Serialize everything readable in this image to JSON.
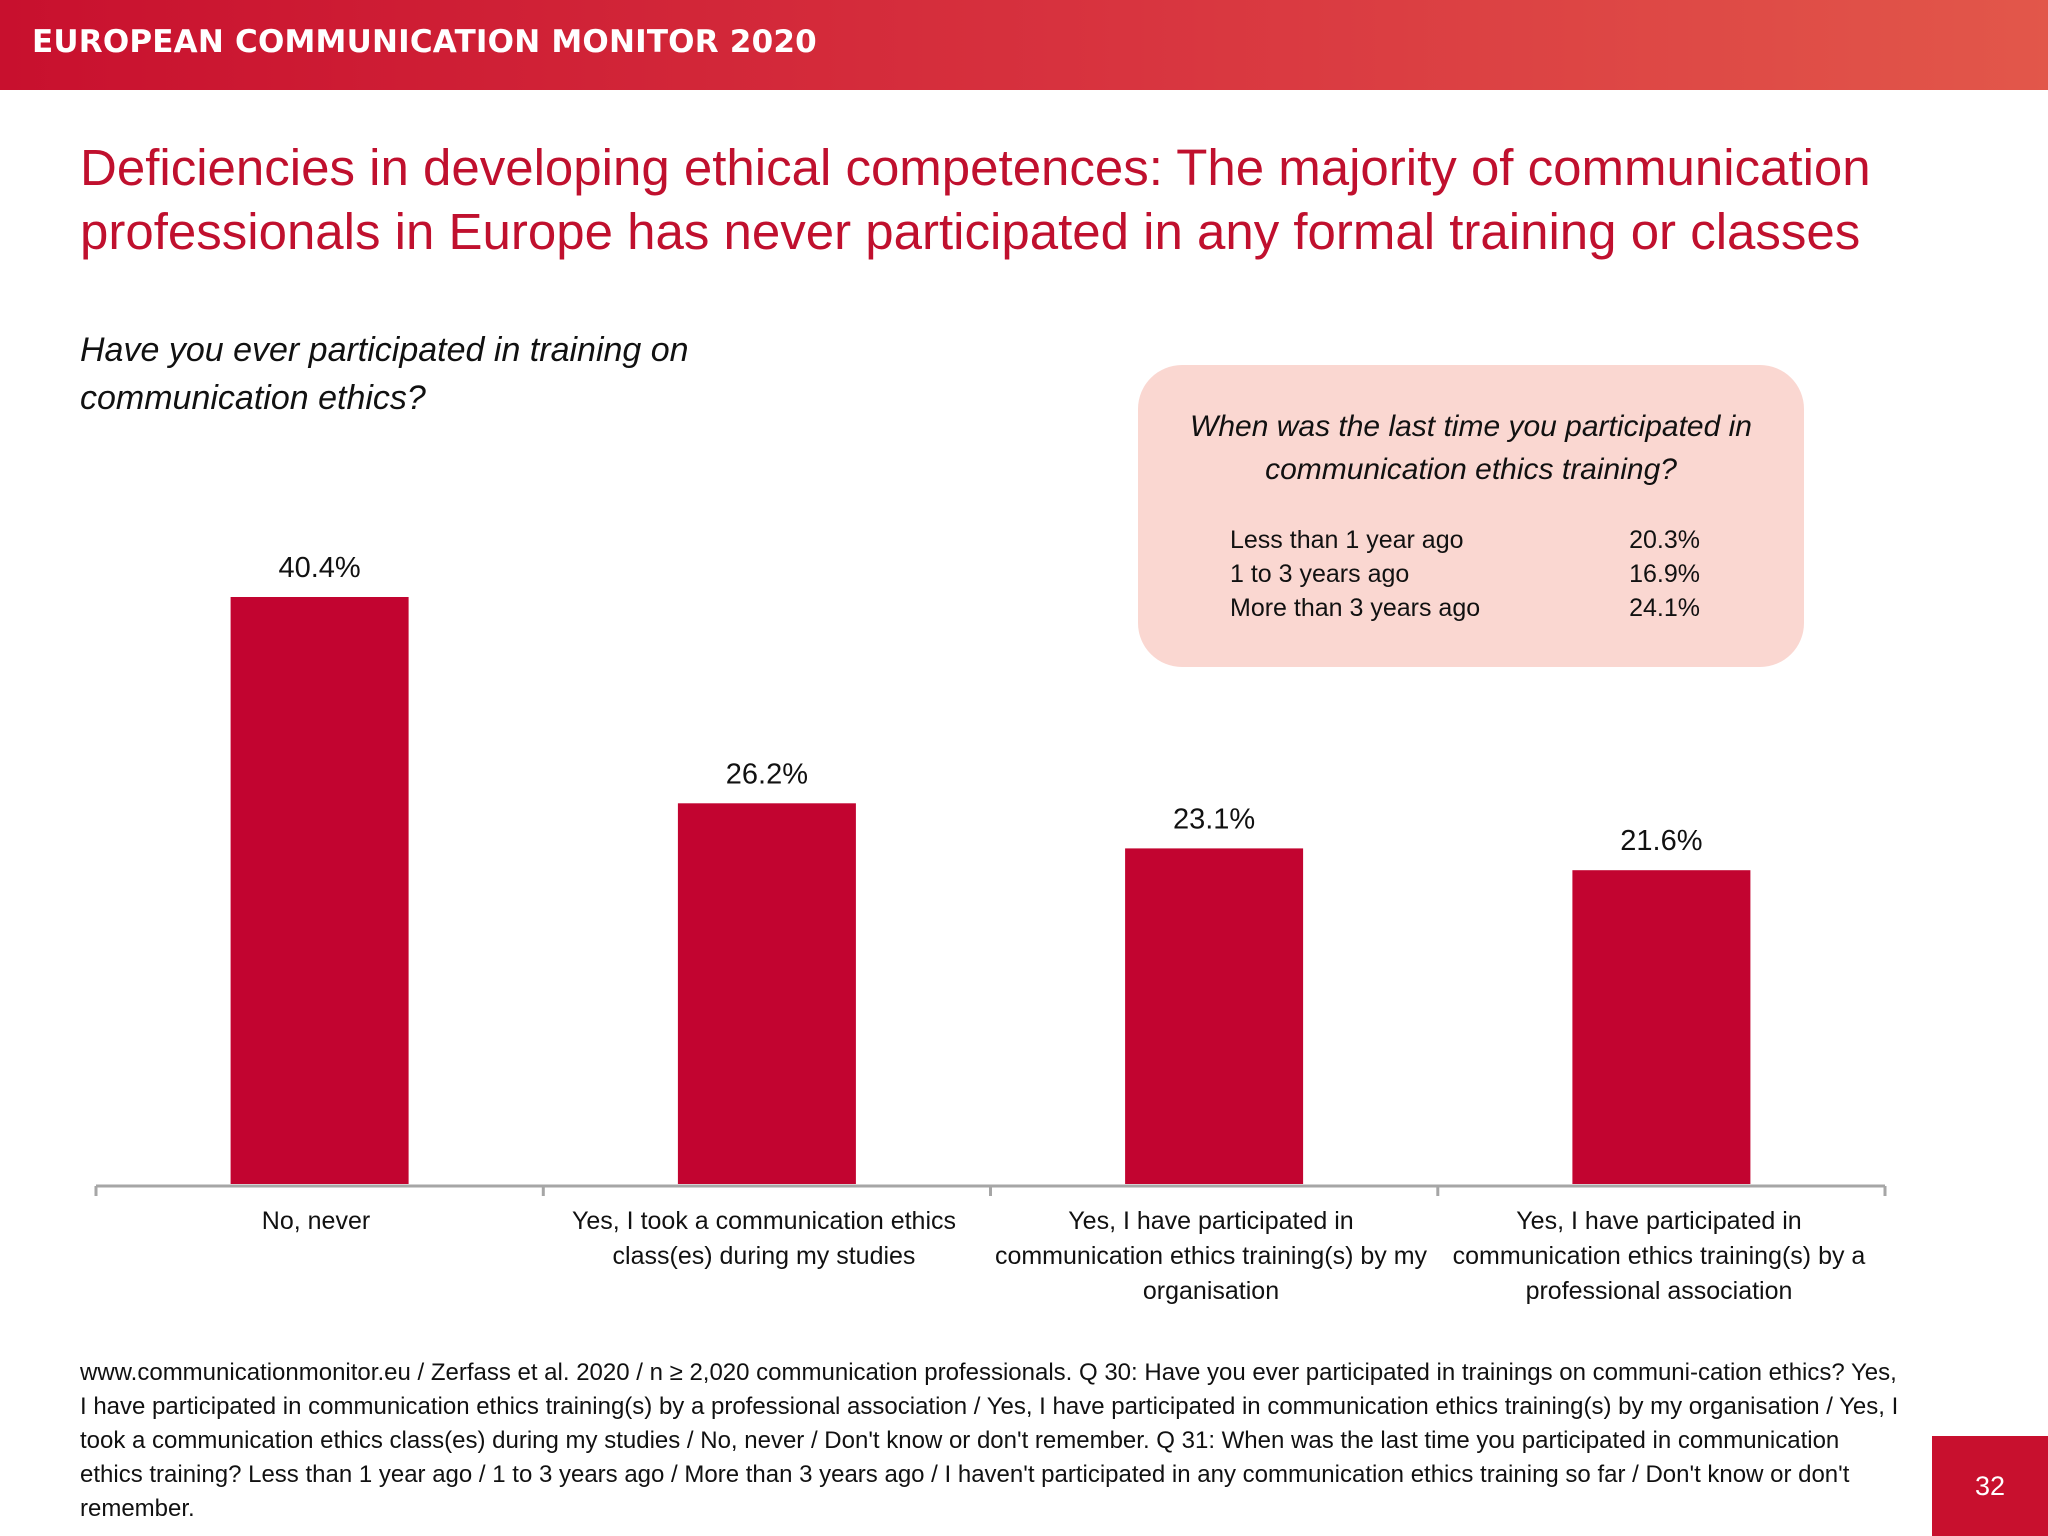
{
  "banner": {
    "text": "EUROPEAN COMMUNICATION MONITOR 2020"
  },
  "slide": {
    "title": "Deficiencies in developing ethical competences: The majority of communication professionals in Europe has never participated in any formal training or classes",
    "question": "Have you ever participated in training on communication ethics?"
  },
  "inset": {
    "question": "When was the last time you participated in communication ethics training?",
    "rows": [
      {
        "label": "Less than 1 year ago",
        "value": "20.3%"
      },
      {
        "label": "1 to 3 years ago",
        "value": "16.9%"
      },
      {
        "label": "More than 3 years ago",
        "value": "24.1%"
      }
    ]
  },
  "chart_data": {
    "type": "bar",
    "categories": [
      "No, never",
      "Yes, I took a communication ethics class(es) during my studies",
      "Yes, I have participated in communication ethics training(s) by my organisation",
      "Yes, I have participated in communication ethics training(s) by a professional association"
    ],
    "values": [
      40.4,
      26.2,
      23.1,
      21.6
    ],
    "value_labels": [
      "40.4%",
      "26.2%",
      "23.1%",
      "21.6%"
    ],
    "title": "",
    "xlabel": "",
    "ylabel": "",
    "ylim": [
      0,
      45
    ],
    "grid": false,
    "legend": "none",
    "bar_color": "#c20430",
    "axis_color": "#a6a6a6"
  },
  "footnote": "www.communicationmonitor.eu / Zerfass et al. 2020 / n ≥ 2,020 communication professionals. Q 30: Have you ever participated in trainings on communi-cation ethics? Yes, I have participated in communication ethics training(s) by a professional association / Yes, I have participated in communication ethics training(s) by my organisation / Yes, I took a communication ethics class(es) during my studies / No, never / Don't know or don't remember. Q 31: When was the last time you participated in communication ethics training? Less than 1 year ago / 1 to 3 years ago / More than 3 years ago / I haven't participated in any communication ethics training so far / Don't know or don't remember.",
  "page_number": "32",
  "colors": {
    "brand_red": "#c8102e",
    "title_red": "#c0102e",
    "inset_bg": "#fad7d1"
  }
}
